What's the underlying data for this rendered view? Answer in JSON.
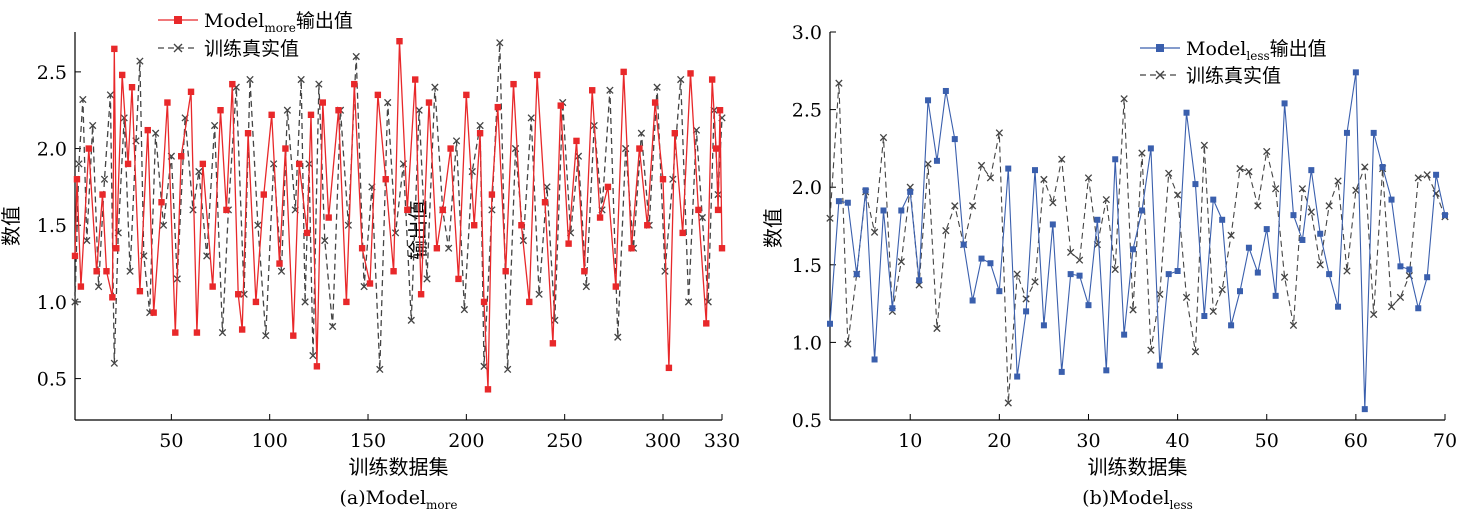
{
  "chart_data": [
    {
      "panel": "a",
      "type": "line",
      "caption_main": "(a)Model",
      "caption_sub": "more",
      "ylabel": "数值",
      "ylabel_overlay": "输出值",
      "xlabel": "训练数据集",
      "xlim": [
        1,
        330
      ],
      "ylim": [
        0.23,
        2.76
      ],
      "x_ticks": [
        50,
        100,
        150,
        200,
        250,
        300,
        330
      ],
      "y_ticks": [
        0.5,
        1.0,
        1.5,
        2.0,
        2.5
      ],
      "y_tick_labels": [
        "0.5",
        "1.0",
        "1.5",
        "2.0",
        "2.5"
      ],
      "legend_position": "top-left",
      "series": [
        {
          "name_main": "Model",
          "name_sub": "more",
          "name_suffix": "输出值",
          "color": "#e8282a",
          "marker": "square",
          "dash": "solid",
          "x": [
            1,
            2,
            4,
            8,
            12,
            15,
            17,
            20,
            21,
            22,
            25,
            28,
            30,
            34,
            38,
            41,
            45,
            48,
            52,
            55,
            60,
            63,
            66,
            71,
            75,
            78,
            81,
            84,
            86,
            89,
            93,
            97,
            101,
            105,
            108,
            112,
            115,
            119,
            121,
            124,
            127,
            130,
            135,
            139,
            143,
            147,
            151,
            155,
            159,
            163,
            166,
            170,
            174,
            177,
            181,
            185,
            188,
            192,
            196,
            200,
            204,
            207,
            209,
            211,
            213,
            216,
            220,
            224,
            228,
            232,
            236,
            240,
            244,
            248,
            252,
            256,
            260,
            264,
            268,
            272,
            276,
            280,
            284,
            288,
            292,
            296,
            300,
            303,
            306,
            310,
            314,
            318,
            322,
            325,
            327,
            328,
            329,
            330
          ],
          "y": [
            1.3,
            1.8,
            1.1,
            2.0,
            1.2,
            1.7,
            1.2,
            1.03,
            2.65,
            1.35,
            2.48,
            1.9,
            2.4,
            1.07,
            2.12,
            0.93,
            1.65,
            2.3,
            0.8,
            1.95,
            2.37,
            0.8,
            1.9,
            1.1,
            2.25,
            1.6,
            2.42,
            1.05,
            0.82,
            2.1,
            1.0,
            1.7,
            2.22,
            1.25,
            2.0,
            0.78,
            1.9,
            1.45,
            2.22,
            0.58,
            2.3,
            1.55,
            2.25,
            1.0,
            2.42,
            1.35,
            1.12,
            2.35,
            1.8,
            1.2,
            2.7,
            1.6,
            2.45,
            1.05,
            2.3,
            1.35,
            1.6,
            2.0,
            1.15,
            2.35,
            1.5,
            2.1,
            1.0,
            0.43,
            1.7,
            2.27,
            1.2,
            2.42,
            1.5,
            1.0,
            2.48,
            1.65,
            0.73,
            2.28,
            1.38,
            2.05,
            1.2,
            2.38,
            1.55,
            1.75,
            1.1,
            2.5,
            1.35,
            2.0,
            1.5,
            2.3,
            1.8,
            0.57,
            2.1,
            1.45,
            2.49,
            1.6,
            0.86,
            2.45,
            2.0,
            1.6,
            2.25,
            1.35
          ]
        },
        {
          "name_main": "训练真实值",
          "name_sub": "",
          "name_suffix": "",
          "color": "#444444",
          "marker": "x",
          "dash": "dashed",
          "x": [
            1,
            3,
            5,
            7,
            10,
            13,
            16,
            19,
            21,
            23,
            26,
            29,
            32,
            34,
            36,
            39,
            42,
            46,
            50,
            53,
            57,
            61,
            64,
            68,
            72,
            76,
            79,
            83,
            87,
            90,
            94,
            98,
            102,
            106,
            109,
            113,
            116,
            118,
            120,
            122,
            125,
            128,
            132,
            136,
            140,
            144,
            148,
            152,
            156,
            160,
            164,
            168,
            172,
            176,
            180,
            184,
            188,
            191,
            195,
            199,
            203,
            207,
            209,
            213,
            217,
            221,
            225,
            229,
            233,
            237,
            241,
            245,
            249,
            253,
            257,
            261,
            265,
            269,
            273,
            277,
            281,
            285,
            289,
            293,
            297,
            301,
            305,
            309,
            313,
            317,
            320,
            323,
            326,
            328,
            330
          ],
          "y": [
            1.0,
            1.9,
            2.32,
            1.4,
            2.15,
            1.1,
            1.8,
            2.35,
            0.6,
            1.45,
            2.2,
            1.2,
            2.05,
            2.57,
            1.3,
            0.93,
            2.1,
            1.5,
            1.95,
            1.15,
            2.2,
            1.6,
            1.85,
            1.3,
            2.15,
            0.8,
            1.6,
            2.4,
            1.05,
            2.45,
            1.5,
            0.78,
            1.9,
            1.2,
            2.25,
            1.6,
            2.45,
            1.0,
            1.9,
            0.65,
            2.42,
            1.4,
            0.84,
            2.25,
            1.5,
            2.6,
            1.1,
            1.75,
            0.56,
            2.3,
            1.45,
            1.9,
            0.88,
            2.25,
            1.15,
            2.4,
            1.6,
            1.35,
            2.05,
            0.95,
            1.85,
            2.15,
            0.58,
            1.6,
            2.69,
            0.56,
            2.0,
            1.4,
            2.2,
            1.05,
            1.75,
            0.88,
            2.3,
            1.45,
            1.95,
            1.1,
            2.15,
            1.6,
            2.38,
            0.77,
            2.0,
            1.35,
            2.1,
            1.5,
            2.4,
            1.2,
            1.8,
            2.45,
            1.0,
            2.12,
            1.55,
            1.0,
            2.25,
            1.7,
            2.2
          ]
        }
      ]
    },
    {
      "panel": "b",
      "type": "line",
      "caption_main": "(b)Model",
      "caption_sub": "less",
      "ylabel": "数值",
      "xlabel": "训练数据集",
      "xlim": [
        1,
        70
      ],
      "ylim": [
        0.5,
        3.0
      ],
      "x_ticks": [
        10,
        20,
        30,
        40,
        50,
        60,
        70
      ],
      "y_ticks": [
        0.5,
        1.0,
        1.5,
        2.0,
        2.5,
        3.0
      ],
      "y_tick_labels": [
        "0.5",
        "1.0",
        "1.5",
        "2.0",
        "2.5",
        "3.0"
      ],
      "legend_position": "top-right",
      "series": [
        {
          "name_main": "Model",
          "name_sub": "less",
          "name_suffix": "输出值",
          "color": "#3a5fad",
          "marker": "square",
          "dash": "solid",
          "x": [
            1,
            2,
            3,
            4,
            5,
            6,
            7,
            8,
            9,
            10,
            11,
            12,
            13,
            14,
            15,
            16,
            17,
            18,
            19,
            20,
            21,
            22,
            23,
            24,
            25,
            26,
            27,
            28,
            29,
            30,
            31,
            32,
            33,
            34,
            35,
            36,
            37,
            38,
            39,
            40,
            41,
            42,
            43,
            44,
            45,
            46,
            47,
            48,
            49,
            50,
            51,
            52,
            53,
            54,
            55,
            56,
            57,
            58,
            59,
            60,
            61,
            62,
            63,
            64,
            65,
            66,
            67,
            68,
            69,
            70
          ],
          "y": [
            1.12,
            1.91,
            1.9,
            1.44,
            1.98,
            0.89,
            1.85,
            1.22,
            1.85,
            1.97,
            1.4,
            2.56,
            2.17,
            2.62,
            2.31,
            1.63,
            1.27,
            1.54,
            1.51,
            1.33,
            2.12,
            0.78,
            1.2,
            2.11,
            1.11,
            1.76,
            0.81,
            1.44,
            1.43,
            1.24,
            1.79,
            0.82,
            2.18,
            1.05,
            1.6,
            1.85,
            2.25,
            0.85,
            1.44,
            1.46,
            2.48,
            2.02,
            1.17,
            1.92,
            1.79,
            1.11,
            1.33,
            1.61,
            1.45,
            1.73,
            1.3,
            2.54,
            1.82,
            1.66,
            2.11,
            1.7,
            1.44,
            1.23,
            2.35,
            2.74,
            0.57,
            2.35,
            2.13,
            1.92,
            1.49,
            1.47,
            1.22,
            1.42,
            2.08,
            1.82
          ]
        },
        {
          "name_main": "训练真实值",
          "name_sub": "",
          "name_suffix": "",
          "color": "#444444",
          "marker": "x",
          "dash": "dashed",
          "x": [
            1,
            2,
            3,
            4,
            5,
            6,
            7,
            8,
            9,
            10,
            11,
            12,
            13,
            14,
            15,
            16,
            17,
            18,
            19,
            20,
            21,
            22,
            23,
            24,
            25,
            26,
            27,
            28,
            29,
            30,
            31,
            32,
            33,
            34,
            35,
            36,
            37,
            38,
            39,
            40,
            41,
            42,
            43,
            44,
            45,
            46,
            47,
            48,
            49,
            50,
            51,
            52,
            53,
            54,
            55,
            56,
            57,
            58,
            59,
            60,
            61,
            62,
            63,
            64,
            65,
            66,
            67,
            68,
            69,
            70
          ],
          "y": [
            1.8,
            2.67,
            0.99,
            1.44,
            1.97,
            1.71,
            2.32,
            1.2,
            1.52,
            2.0,
            1.37,
            2.15,
            1.09,
            1.72,
            1.88,
            1.63,
            1.88,
            2.14,
            2.06,
            2.35,
            0.61,
            1.44,
            1.28,
            1.39,
            2.05,
            1.9,
            2.18,
            1.58,
            1.53,
            2.06,
            1.63,
            1.92,
            1.47,
            2.57,
            1.21,
            2.22,
            0.95,
            1.31,
            2.09,
            1.95,
            1.29,
            0.94,
            2.27,
            1.2,
            1.34,
            1.69,
            2.12,
            2.1,
            1.88,
            2.23,
            1.99,
            1.42,
            1.11,
            1.99,
            1.84,
            1.5,
            1.88,
            2.04,
            1.46,
            1.98,
            2.13,
            1.18,
            2.12,
            1.23,
            1.29,
            1.43,
            2.06,
            2.08,
            1.96,
            1.81
          ]
        }
      ]
    }
  ]
}
